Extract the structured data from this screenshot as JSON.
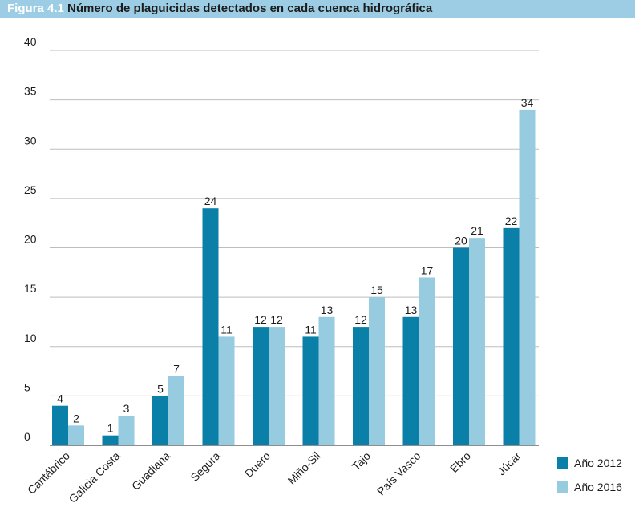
{
  "title_prefix": "Figura 4.1",
  "title": "Número de plaguicidas detectados en cada cuenca hidrográfica",
  "colors": {
    "title_bar": "#9ccde4",
    "series_2012": "#0a7fa7",
    "series_2016": "#96cbe0",
    "grid": "#bdbdbd"
  },
  "chart_data": {
    "type": "bar",
    "title": "Número de plaguicidas detectados en cada cuenca hidrográfica",
    "xlabel": "",
    "ylabel": "",
    "ylim": [
      0,
      40
    ],
    "yticks": [
      0,
      5,
      10,
      15,
      20,
      25,
      30,
      35,
      40
    ],
    "grid": true,
    "legend_position": "bottom-right",
    "categories": [
      "Cantábrico",
      "Galicia Costa",
      "Guadiana",
      "Segura",
      "Duero",
      "Miño-Sil",
      "Tajo",
      "País Vasco",
      "Ebro",
      "Júcar"
    ],
    "series": [
      {
        "name": "Año 2012",
        "color": "#0a7fa7",
        "values": [
          4,
          1,
          5,
          24,
          12,
          11,
          12,
          13,
          20,
          22
        ]
      },
      {
        "name": "Año 2016",
        "color": "#96cbe0",
        "values": [
          2,
          3,
          7,
          11,
          12,
          13,
          15,
          17,
          21,
          34
        ]
      }
    ]
  }
}
